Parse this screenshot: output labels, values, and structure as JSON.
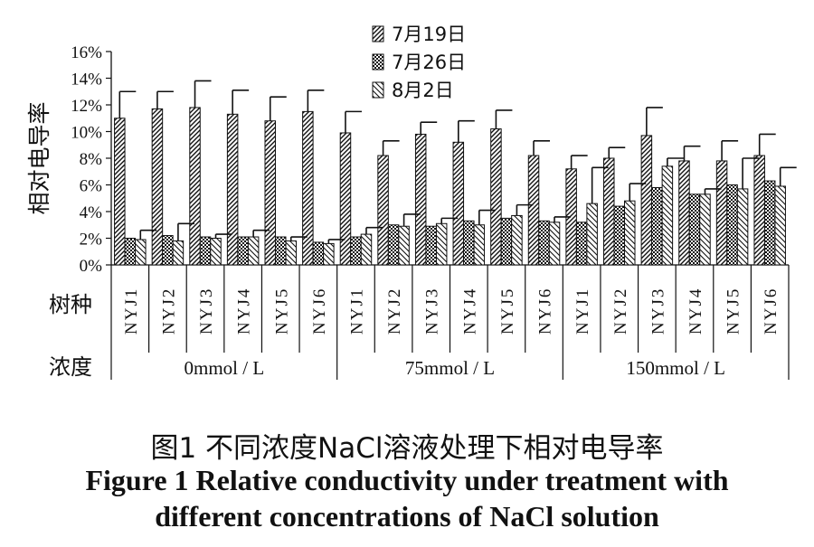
{
  "chart_data": {
    "type": "bar",
    "ylabel": "相对电导率",
    "ylim": [
      0,
      16
    ],
    "yticks": [
      "0%",
      "2%",
      "4%",
      "6%",
      "8%",
      "10%",
      "12%",
      "14%",
      "16%"
    ],
    "row_labels": {
      "species": "树种",
      "concentration": "浓度"
    },
    "groups": [
      {
        "label": "0mmol / L",
        "categories": [
          "NYJ1",
          "NYJ2",
          "NYJ3",
          "NYJ4",
          "NYJ5",
          "NYJ6"
        ]
      },
      {
        "label": "75mmol / L",
        "categories": [
          "NYJ1",
          "NYJ2",
          "NYJ3",
          "NYJ4",
          "NYJ5",
          "NYJ6"
        ]
      },
      {
        "label": "150mmol / L",
        "categories": [
          "NYJ1",
          "NYJ2",
          "NYJ3",
          "NYJ4",
          "NYJ5",
          "NYJ6"
        ]
      }
    ],
    "series": [
      {
        "name": "7月19日",
        "pattern": "diag-dense",
        "values": [
          11.0,
          11.7,
          11.8,
          11.3,
          10.8,
          11.5,
          9.9,
          8.2,
          9.8,
          9.2,
          10.2,
          8.2,
          7.2,
          8.0,
          9.7,
          7.8,
          7.8,
          8.2
        ],
        "errors": [
          2.0,
          1.3,
          2.0,
          1.8,
          1.8,
          1.6,
          1.6,
          1.1,
          0.9,
          1.6,
          1.4,
          1.1,
          1.0,
          0.8,
          2.1,
          1.1,
          1.5,
          1.6
        ]
      },
      {
        "name": "7月26日",
        "pattern": "checker",
        "values": [
          2.0,
          2.2,
          2.1,
          2.1,
          2.1,
          1.7,
          2.1,
          3.0,
          2.9,
          3.3,
          3.5,
          3.3,
          3.2,
          4.4,
          5.8,
          5.3,
          6.0,
          6.3
        ],
        "errors": [
          0,
          0,
          0,
          0,
          0,
          0,
          0,
          0,
          0,
          0,
          0,
          0,
          0,
          0,
          0,
          0,
          0,
          0
        ]
      },
      {
        "name": "8月2日",
        "pattern": "diag-sparse",
        "values": [
          1.9,
          1.8,
          2.0,
          2.1,
          1.8,
          1.6,
          2.3,
          2.9,
          3.1,
          3.0,
          3.7,
          3.2,
          4.6,
          4.8,
          7.4,
          5.3,
          5.7,
          5.9
        ],
        "errors": [
          0.7,
          1.3,
          0.3,
          0.5,
          0.3,
          0.3,
          0.5,
          0.9,
          0.4,
          1.1,
          0.8,
          0.4,
          2.7,
          1.3,
          0.6,
          0.4,
          2.3,
          1.4
        ]
      }
    ],
    "legend_position": "top-center",
    "grid": false
  },
  "caption": {
    "cn": "图1  不同浓度NaCl溶液处理下相对电导率",
    "en_line1": "Figure 1    Relative conductivity under treatment with",
    "en_line2": "different concentrations of NaCl solution"
  }
}
